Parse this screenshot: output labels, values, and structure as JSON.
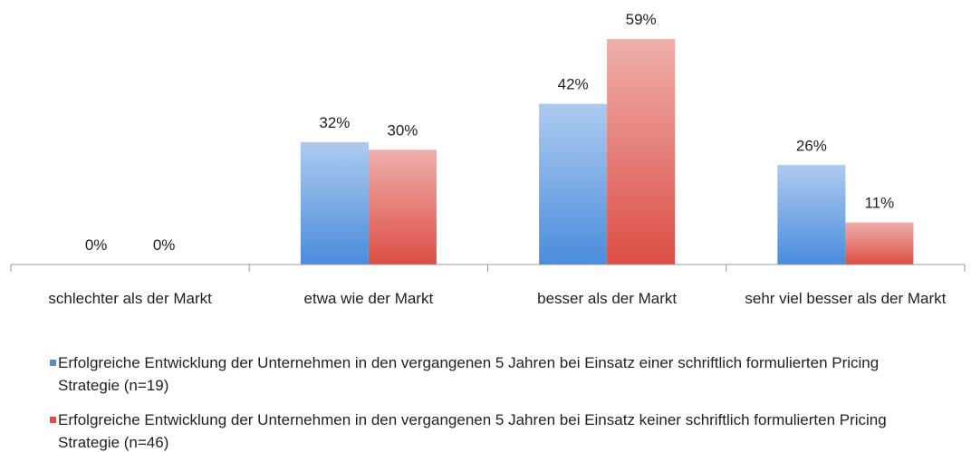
{
  "chart_data": {
    "type": "bar",
    "categories": [
      "schlechter als der Markt",
      "etwa wie der Markt",
      "besser als der Markt",
      "sehr viel besser als der Markt"
    ],
    "series": [
      {
        "name": "Erfolgreiche Entwicklung der Unternehmen in den vergangenen 5 Jahren bei Einsatz einer schriftlich formulierten Pricing Strategie (n=19)",
        "color": "#4a8cdc",
        "values": [
          0,
          32,
          42,
          26
        ],
        "value_labels": [
          "0%",
          "32%",
          "42%",
          "26%"
        ]
      },
      {
        "name": "Erfolgreiche Entwicklung der Unternehmen in den vergangenen 5 Jahren bei Einsatz keiner schriftlich formulierten Pricing Strategie (n=46)",
        "color": "#dc4e45",
        "values": [
          0,
          30,
          59,
          11
        ],
        "value_labels": [
          "0%",
          "30%",
          "59%",
          "11%"
        ]
      }
    ]
  }
}
